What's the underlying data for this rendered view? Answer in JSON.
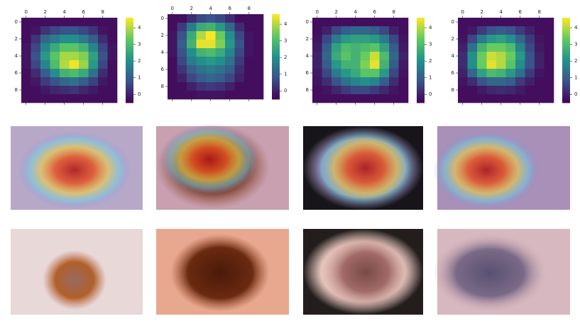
{
  "chart_data": [
    {
      "type": "heatmap",
      "colormap": "viridis",
      "xlim": [
        -0.5,
        9.5
      ],
      "ylim": [
        9.5,
        -0.5
      ],
      "xticks": [
        0,
        2,
        4,
        6,
        8
      ],
      "yticks": [
        0,
        2,
        4,
        6,
        8
      ],
      "colorbar_lim": [
        -0.5,
        4.6
      ],
      "colorbar_ticks": [
        0,
        1,
        2,
        3,
        4
      ],
      "values": [
        [
          -0.3,
          -0.3,
          -0.3,
          -0.3,
          -0.3,
          -0.3,
          -0.3,
          -0.3,
          -0.3,
          -0.3
        ],
        [
          -0.3,
          -0.2,
          0.3,
          0.6,
          0.8,
          0.8,
          0.6,
          0.3,
          -0.2,
          -0.3
        ],
        [
          -0.3,
          0.3,
          1.2,
          1.6,
          2.0,
          2.0,
          1.6,
          1.0,
          0.2,
          -0.3
        ],
        [
          -0.2,
          0.6,
          1.8,
          2.6,
          3.2,
          3.2,
          2.8,
          1.8,
          0.6,
          -0.2
        ],
        [
          -0.2,
          0.8,
          2.2,
          3.2,
          3.9,
          3.9,
          3.6,
          2.4,
          0.8,
          -0.2
        ],
        [
          -0.2,
          0.6,
          1.8,
          3.0,
          4.0,
          4.5,
          3.8,
          2.2,
          0.6,
          -0.3
        ],
        [
          -0.3,
          0.2,
          1.0,
          2.0,
          2.8,
          3.0,
          2.6,
          1.4,
          0.2,
          -0.3
        ],
        [
          -0.3,
          -0.1,
          0.4,
          0.8,
          1.2,
          1.4,
          1.0,
          0.5,
          -0.1,
          -0.3
        ],
        [
          -0.3,
          -0.3,
          -0.1,
          0.1,
          0.2,
          0.3,
          0.1,
          -0.1,
          -0.3,
          -0.3
        ],
        [
          -0.3,
          -0.3,
          -0.3,
          -0.3,
          -0.3,
          -0.3,
          -0.3,
          -0.3,
          -0.3,
          -0.3
        ]
      ]
    },
    {
      "type": "heatmap",
      "colormap": "viridis",
      "xlim": [
        -0.5,
        9.5
      ],
      "ylim": [
        9.5,
        -0.5
      ],
      "xticks": [
        0,
        2,
        4,
        6,
        8
      ],
      "yticks": [
        0,
        2,
        4,
        6,
        8
      ],
      "colorbar_lim": [
        -0.5,
        4.6
      ],
      "colorbar_ticks": [
        0,
        1,
        2,
        3,
        4
      ],
      "values": [
        [
          -0.3,
          -0.3,
          0.2,
          0.6,
          0.8,
          0.6,
          0.2,
          -0.3,
          -0.3,
          -0.3
        ],
        [
          -0.3,
          0.4,
          1.6,
          2.6,
          2.8,
          2.2,
          1.2,
          0.2,
          -0.3,
          -0.3
        ],
        [
          -0.2,
          0.8,
          2.6,
          4.0,
          4.6,
          3.4,
          2.0,
          0.6,
          -0.2,
          -0.3
        ],
        [
          -0.2,
          1.0,
          2.8,
          4.4,
          4.4,
          3.6,
          2.2,
          0.8,
          -0.2,
          -0.3
        ],
        [
          -0.2,
          0.8,
          2.0,
          2.8,
          3.0,
          2.6,
          1.8,
          0.6,
          -0.2,
          -0.3
        ],
        [
          -0.3,
          0.6,
          1.6,
          2.0,
          2.2,
          2.0,
          1.4,
          0.4,
          -0.3,
          -0.3
        ],
        [
          -0.3,
          0.3,
          1.0,
          1.4,
          1.6,
          1.4,
          1.0,
          0.2,
          -0.3,
          -0.3
        ],
        [
          -0.3,
          0.0,
          0.6,
          1.0,
          1.2,
          1.0,
          0.6,
          0.0,
          -0.3,
          -0.3
        ],
        [
          -0.3,
          -0.3,
          0.0,
          0.3,
          0.4,
          0.3,
          0.0,
          -0.3,
          -0.3,
          -0.3
        ],
        [
          -0.3,
          -0.3,
          -0.3,
          -0.2,
          -0.2,
          -0.2,
          -0.3,
          -0.3,
          -0.3,
          -0.3
        ]
      ]
    },
    {
      "type": "heatmap",
      "colormap": "viridis",
      "xlim": [
        -0.5,
        9.5
      ],
      "ylim": [
        9.5,
        -0.5
      ],
      "xticks": [
        0,
        2,
        4,
        6,
        8
      ],
      "yticks": [
        0,
        2,
        4,
        6,
        8
      ],
      "colorbar_lim": [
        -0.5,
        4.6
      ],
      "colorbar_ticks": [
        0,
        1,
        2,
        3,
        4
      ],
      "values": [
        [
          -0.3,
          -0.3,
          -0.3,
          -0.3,
          -0.3,
          -0.3,
          -0.3,
          -0.3,
          -0.3,
          -0.3
        ],
        [
          -0.3,
          0.0,
          0.6,
          1.0,
          1.2,
          1.2,
          1.0,
          0.6,
          0.0,
          -0.3
        ],
        [
          -0.2,
          0.6,
          1.6,
          2.2,
          2.4,
          2.4,
          2.2,
          1.6,
          0.6,
          -0.2
        ],
        [
          -0.1,
          1.0,
          2.4,
          3.0,
          2.8,
          3.0,
          3.2,
          2.4,
          1.0,
          -0.1
        ],
        [
          0.0,
          1.2,
          2.6,
          3.2,
          2.8,
          3.4,
          4.2,
          3.0,
          1.2,
          0.0
        ],
        [
          0.0,
          1.0,
          2.2,
          2.8,
          2.8,
          3.6,
          4.4,
          2.8,
          1.0,
          -0.1
        ],
        [
          -0.1,
          0.6,
          1.6,
          2.2,
          2.6,
          3.2,
          3.2,
          2.2,
          0.6,
          -0.2
        ],
        [
          -0.2,
          0.2,
          0.8,
          1.4,
          1.8,
          2.0,
          1.8,
          1.0,
          0.2,
          -0.3
        ],
        [
          -0.3,
          -0.2,
          0.1,
          0.4,
          0.6,
          0.6,
          0.4,
          0.1,
          -0.2,
          -0.3
        ],
        [
          -0.3,
          -0.3,
          -0.3,
          -0.3,
          -0.3,
          -0.3,
          -0.3,
          -0.3,
          -0.3,
          -0.3
        ]
      ]
    },
    {
      "type": "heatmap",
      "colormap": "viridis",
      "xlim": [
        -0.5,
        9.5
      ],
      "ylim": [
        9.5,
        -0.5
      ],
      "xticks": [
        0,
        2,
        4,
        6,
        8
      ],
      "yticks": [
        0,
        2,
        4,
        6,
        8
      ],
      "colorbar_lim": [
        -0.5,
        4.6
      ],
      "colorbar_ticks": [
        0,
        1,
        2,
        3,
        4
      ],
      "values": [
        [
          -0.3,
          -0.3,
          -0.3,
          -0.3,
          -0.3,
          -0.3,
          -0.3,
          -0.3,
          -0.3,
          -0.3
        ],
        [
          -0.3,
          -0.1,
          0.4,
          0.8,
          1.0,
          0.8,
          0.4,
          0.0,
          -0.3,
          -0.3
        ],
        [
          -0.2,
          0.6,
          1.6,
          2.2,
          2.4,
          2.0,
          1.2,
          0.4,
          -0.2,
          -0.3
        ],
        [
          0.0,
          1.4,
          2.8,
          3.4,
          3.4,
          3.0,
          1.8,
          0.6,
          -0.1,
          -0.3
        ],
        [
          0.2,
          2.0,
          3.4,
          4.2,
          4.0,
          3.4,
          2.2,
          0.8,
          0.0,
          -0.3
        ],
        [
          0.2,
          2.0,
          3.4,
          4.4,
          4.0,
          3.2,
          2.0,
          0.8,
          0.0,
          -0.3
        ],
        [
          0.0,
          1.2,
          2.4,
          3.0,
          2.8,
          2.2,
          1.4,
          0.4,
          -0.2,
          -0.3
        ],
        [
          -0.2,
          0.2,
          0.8,
          1.2,
          1.2,
          1.0,
          0.4,
          0.0,
          -0.3,
          -0.3
        ],
        [
          -0.3,
          -0.3,
          -0.1,
          0.1,
          0.2,
          0.1,
          -0.1,
          -0.3,
          -0.3,
          -0.3
        ],
        [
          -0.3,
          -0.3,
          -0.3,
          -0.3,
          -0.3,
          -0.3,
          -0.3,
          -0.3,
          -0.3,
          -0.3
        ]
      ]
    }
  ]
}
